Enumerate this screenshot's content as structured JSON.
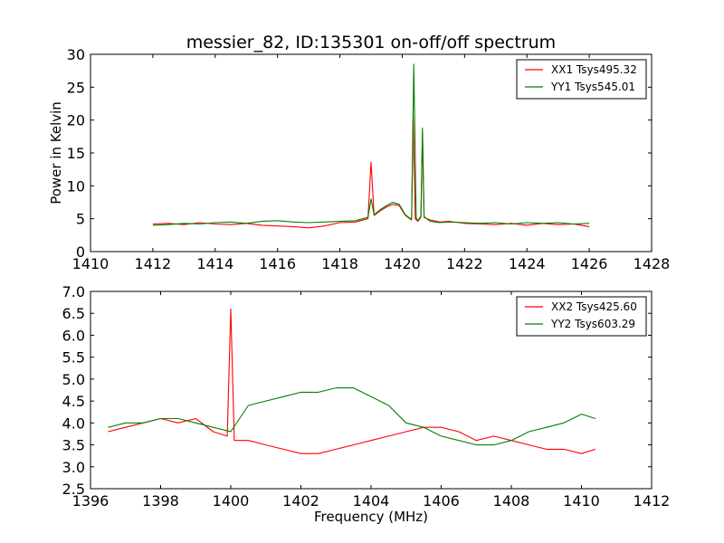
{
  "chart_data": [
    {
      "type": "line",
      "title": "messier_82, ID:135301 on-off/off spectrum",
      "xlabel": "",
      "ylabel": "Power in Kelvin",
      "xlim": [
        1410,
        1428
      ],
      "ylim": [
        0,
        30
      ],
      "xticks": [
        "1410",
        "1412",
        "1414",
        "1416",
        "1418",
        "1420",
        "1422",
        "1424",
        "1426",
        "1428"
      ],
      "yticks": [
        "0",
        "5",
        "10",
        "15",
        "20",
        "25",
        "30"
      ],
      "legend_position": "upper right",
      "grid": false,
      "series": [
        {
          "name": "XX1 Tsys495.32",
          "color": "#ff0000",
          "x": [
            1412.0,
            1412.5,
            1413.0,
            1413.5,
            1414.0,
            1414.5,
            1415.0,
            1415.5,
            1416.0,
            1416.5,
            1417.0,
            1417.5,
            1418.0,
            1418.5,
            1418.9,
            1419.0,
            1419.1,
            1419.3,
            1419.5,
            1419.7,
            1419.9,
            1420.1,
            1420.3,
            1420.35,
            1420.42,
            1420.5,
            1420.6,
            1420.65,
            1420.7,
            1420.9,
            1421.2,
            1421.5,
            1422.0,
            1422.5,
            1423.0,
            1423.5,
            1424.0,
            1424.5,
            1425.0,
            1425.5,
            1426.0
          ],
          "y": [
            4.2,
            4.3,
            4.1,
            4.4,
            4.2,
            4.1,
            4.3,
            4.0,
            3.9,
            3.8,
            3.6,
            3.9,
            4.4,
            4.5,
            5.0,
            13.6,
            5.5,
            6.2,
            6.8,
            7.2,
            7.0,
            5.5,
            4.8,
            20.5,
            5.0,
            4.6,
            5.2,
            18.0,
            5.2,
            4.8,
            4.5,
            4.6,
            4.3,
            4.2,
            4.1,
            4.3,
            4.0,
            4.3,
            4.1,
            4.2,
            3.8
          ]
        },
        {
          "name": "YY1 Tsys545.01",
          "color": "#008000",
          "x": [
            1412.0,
            1412.5,
            1413.0,
            1413.5,
            1414.0,
            1414.5,
            1415.0,
            1415.5,
            1416.0,
            1416.5,
            1417.0,
            1417.5,
            1418.0,
            1418.5,
            1418.9,
            1419.0,
            1419.1,
            1419.3,
            1419.5,
            1419.7,
            1419.9,
            1420.1,
            1420.3,
            1420.37,
            1420.45,
            1420.5,
            1420.6,
            1420.65,
            1420.7,
            1420.9,
            1421.2,
            1421.5,
            1422.0,
            1422.5,
            1423.0,
            1423.5,
            1424.0,
            1424.5,
            1425.0,
            1425.5,
            1426.0
          ],
          "y": [
            4.0,
            4.1,
            4.3,
            4.2,
            4.4,
            4.5,
            4.3,
            4.6,
            4.7,
            4.5,
            4.4,
            4.5,
            4.6,
            4.7,
            5.2,
            8.0,
            5.6,
            6.4,
            7.0,
            7.5,
            7.2,
            5.6,
            4.9,
            28.5,
            5.1,
            4.7,
            5.4,
            18.8,
            5.3,
            4.6,
            4.4,
            4.5,
            4.4,
            4.3,
            4.4,
            4.2,
            4.4,
            4.3,
            4.4,
            4.2,
            4.3
          ]
        }
      ]
    },
    {
      "type": "line",
      "title": "",
      "xlabel": "Frequency (MHz)",
      "ylabel": "",
      "xlim": [
        1396,
        1412
      ],
      "ylim": [
        2.5,
        7.0
      ],
      "xticks": [
        "1396",
        "1398",
        "1400",
        "1402",
        "1404",
        "1406",
        "1408",
        "1410",
        "1412"
      ],
      "yticks": [
        "2.5",
        "3.0",
        "3.5",
        "4.0",
        "4.5",
        "5.0",
        "5.5",
        "6.0",
        "6.5",
        "7.0"
      ],
      "legend_position": "upper right",
      "grid": false,
      "series": [
        {
          "name": "XX2 Tsys425.60",
          "color": "#ff0000",
          "x": [
            1396.5,
            1397.0,
            1397.5,
            1398.0,
            1398.5,
            1399.0,
            1399.5,
            1399.9,
            1400.0,
            1400.1,
            1400.5,
            1401.0,
            1401.5,
            1402.0,
            1402.5,
            1403.0,
            1403.5,
            1404.0,
            1404.5,
            1405.0,
            1405.5,
            1406.0,
            1406.5,
            1407.0,
            1407.5,
            1408.0,
            1408.5,
            1409.0,
            1409.5,
            1410.0,
            1410.4
          ],
          "y": [
            3.8,
            3.9,
            4.0,
            4.1,
            4.0,
            4.1,
            3.8,
            3.7,
            6.6,
            3.6,
            3.6,
            3.5,
            3.4,
            3.3,
            3.3,
            3.4,
            3.5,
            3.6,
            3.7,
            3.8,
            3.9,
            3.9,
            3.8,
            3.6,
            3.7,
            3.6,
            3.5,
            3.4,
            3.4,
            3.3,
            3.4
          ]
        },
        {
          "name": "YY2 Tsys603.29",
          "color": "#008000",
          "x": [
            1396.5,
            1397.0,
            1397.5,
            1398.0,
            1398.5,
            1399.0,
            1399.5,
            1400.0,
            1400.5,
            1401.0,
            1401.5,
            1402.0,
            1402.5,
            1403.0,
            1403.5,
            1404.0,
            1404.5,
            1405.0,
            1405.5,
            1406.0,
            1406.5,
            1407.0,
            1407.5,
            1408.0,
            1408.5,
            1409.0,
            1409.5,
            1410.0,
            1410.4
          ],
          "y": [
            3.9,
            4.0,
            4.0,
            4.1,
            4.1,
            4.0,
            3.9,
            3.8,
            4.4,
            4.5,
            4.6,
            4.7,
            4.7,
            4.8,
            4.8,
            4.6,
            4.4,
            4.0,
            3.9,
            3.7,
            3.6,
            3.5,
            3.5,
            3.6,
            3.8,
            3.9,
            4.0,
            4.2,
            4.1
          ]
        }
      ]
    }
  ]
}
